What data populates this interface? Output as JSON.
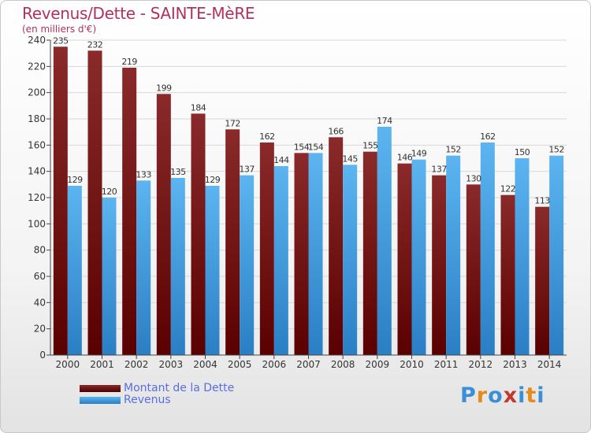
{
  "chart_data": {
    "type": "bar",
    "title": "Revenus/Dette - SAINTE-MèRE",
    "subtitle": "(en milliers d'€)",
    "categories": [
      "2000",
      "2001",
      "2002",
      "2003",
      "2004",
      "2005",
      "2006",
      "2007",
      "2008",
      "2009",
      "2010",
      "2011",
      "2012",
      "2013",
      "2014"
    ],
    "series": [
      {
        "name": "Montant de la Dette",
        "color": "#7a1515",
        "values": [
          235,
          232,
          219,
          199,
          184,
          172,
          162,
          154,
          166,
          155,
          146,
          137,
          130,
          122,
          113
        ]
      },
      {
        "name": "Revenus",
        "color": "#4aa3e6",
        "values": [
          129,
          120,
          133,
          135,
          129,
          137,
          144,
          154,
          145,
          174,
          149,
          152,
          162,
          150,
          152
        ]
      }
    ],
    "ylim": [
      0,
      240
    ],
    "yticks": [
      0,
      20,
      40,
      60,
      80,
      100,
      120,
      140,
      160,
      180,
      200,
      220,
      240
    ],
    "grid": true,
    "legend": "bottom-left"
  },
  "logo": {
    "text": "Proxiti",
    "letters": [
      "P",
      "r",
      "o",
      "x",
      "i",
      "t",
      "i"
    ],
    "colors": [
      "#3b8fd6",
      "#e68a1a",
      "#3b8fd6",
      "#c0392b",
      "#3b8fd6",
      "#e68a1a",
      "#3b8fd6"
    ]
  }
}
